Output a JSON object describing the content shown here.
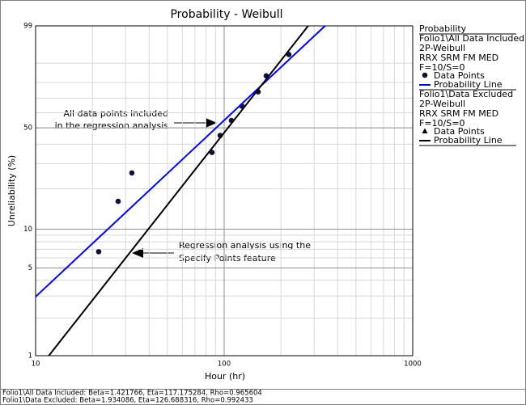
{
  "chart_data": {
    "type": "probability",
    "title": "Probability - Weibull",
    "x_label": "Hour (hr)",
    "y_label": "Unreliability (%)",
    "x_scale": "log",
    "y_scale": "weibull",
    "xlim": [
      10,
      1000
    ],
    "xticks": [
      10,
      100,
      1000
    ],
    "ylim": [
      1,
      99
    ],
    "yticks": [
      1,
      5,
      10,
      50,
      99
    ],
    "grid": true,
    "legend_title": "Probability",
    "groups": [
      {
        "label": "Folio1\\All Data Included",
        "info": [
          "2P-Weibull",
          "RRX SRM FM MED",
          "F=10/S=0"
        ],
        "series": [
          {
            "name": "Data Points",
            "marker": "circle",
            "color": "#10103a",
            "x": [
              21.6,
              27.4,
              32.4,
              86.2,
              95.2,
              109.3,
              124.3,
              151.4,
              167.2,
              220.4
            ],
            "values": [
              6.7,
              16.2,
              25.9,
              35.5,
              45.2,
              54.8,
              64.5,
              74.1,
              83.8,
              93.3
            ]
          },
          {
            "name": "Probability Line",
            "marker": "line",
            "color": "#0000ff",
            "x": [
              10,
              343
            ],
            "values": [
              2.96,
              99
            ]
          }
        ]
      },
      {
        "label": "Folio1\\Data Excluded",
        "info": [
          "2P-Weibull",
          "RRX SRM FM MED",
          "F=10/S=0"
        ],
        "series": [
          {
            "name": "Data Points",
            "marker": "triangle",
            "color": "#000000",
            "x": [],
            "values": []
          },
          {
            "name": "Probability Line",
            "marker": "line",
            "color": "#000000",
            "x": [
              11.75,
              279
            ],
            "values": [
              1,
              99
            ]
          }
        ]
      }
    ],
    "annotations": [
      {
        "lines": [
          "All data points included",
          "in the regression analysis"
        ]
      },
      {
        "lines": [
          "Regression analysis using the",
          "Specify Points feature"
        ]
      }
    ],
    "footer": [
      "Folio1\\All Data Included: Beta=1.421766, Eta=117.175284, Rho=0.965604",
      "Folio1\\Data Excluded: Beta=1.934086, Eta=126.688316, Rho=0.992433"
    ]
  }
}
